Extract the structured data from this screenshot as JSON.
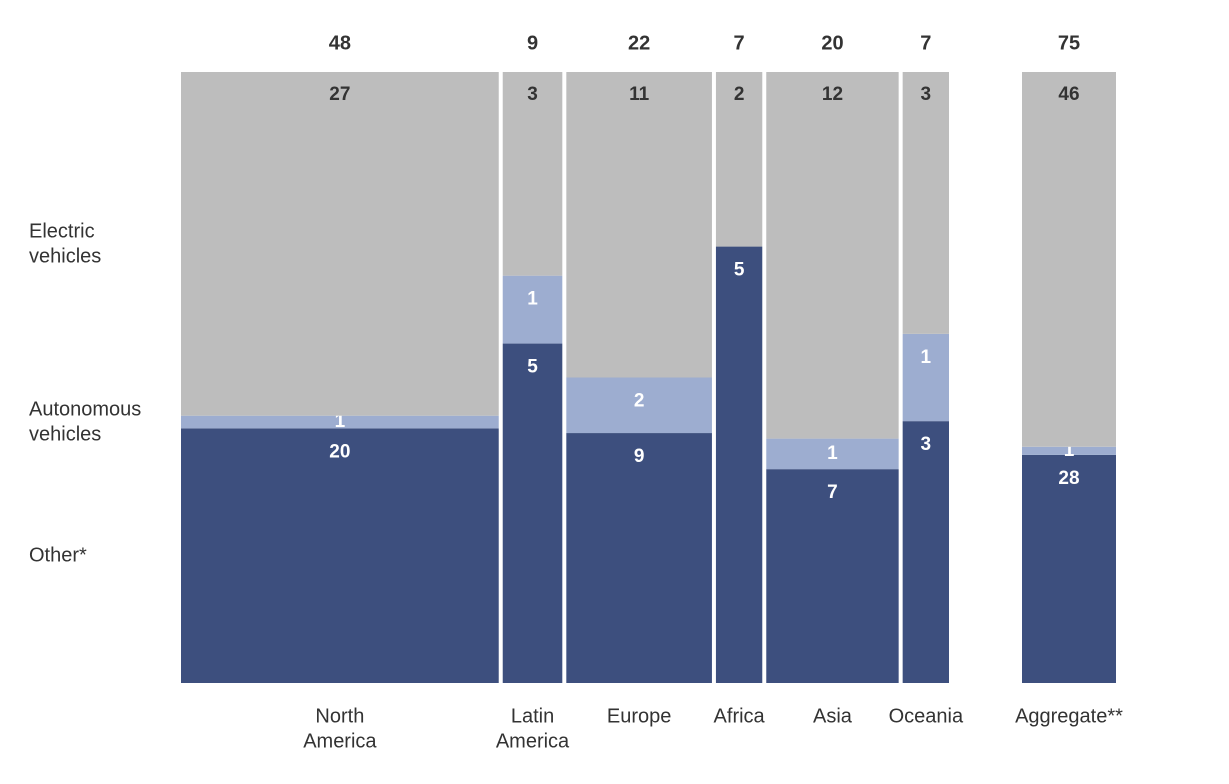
{
  "chart_data": {
    "type": "bar",
    "subtype": "mosaic-stacked-100-percent",
    "title": "",
    "xlabel": "",
    "ylabel": "",
    "categories": [
      "North America",
      "Latin America",
      "Europe",
      "Africa",
      "Asia",
      "Oceania",
      "Aggregate**"
    ],
    "category_label_lines": [
      [
        "North",
        "America"
      ],
      [
        "Latin",
        "America"
      ],
      [
        "Europe"
      ],
      [
        "Africa"
      ],
      [
        "Asia"
      ],
      [
        "Oceania"
      ],
      [
        "Aggregate**"
      ]
    ],
    "totals": [
      48,
      9,
      22,
      7,
      20,
      7,
      75
    ],
    "series": [
      {
        "name": "Other*",
        "values": [
          20,
          5,
          9,
          5,
          7,
          3,
          28
        ],
        "color": "#3d4f7e",
        "label_color": "#ffffff"
      },
      {
        "name": "Autonomous vehicles",
        "values": [
          1,
          1,
          2,
          0,
          1,
          1,
          1
        ],
        "color": "#9dadd0",
        "label_color": "#ffffff"
      },
      {
        "name": "Electric vehicles",
        "values": [
          27,
          3,
          11,
          2,
          12,
          3,
          46
        ],
        "color": "#bdbdbd",
        "label_color": "#333333"
      }
    ],
    "legend": {
      "placement": "left",
      "entries": [
        {
          "lines": [
            "Electric",
            "vehicles"
          ],
          "series": "Electric vehicles"
        },
        {
          "lines": [
            "Autonomous",
            "vehicles"
          ],
          "series": "Autonomous vehicles"
        },
        {
          "lines": [
            "Other*"
          ],
          "series": "Other*"
        }
      ]
    },
    "grid": false,
    "aggregate_separated": true
  }
}
